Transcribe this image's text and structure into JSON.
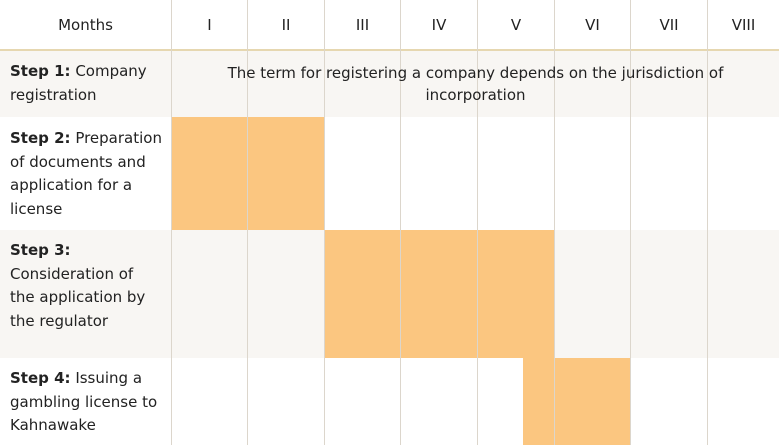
{
  "header": {
    "label": "Months",
    "months": [
      "I",
      "II",
      "III",
      "IV",
      "V",
      "VI",
      "VII",
      "VIII"
    ]
  },
  "steps": [
    {
      "title": "Step 1:",
      "text": " Company registration"
    },
    {
      "title": "Step 2:",
      "text": " Preparation of documents and application for a license"
    },
    {
      "title": "Step 3:",
      "text": " Consideration of the application by the regulator"
    },
    {
      "title": "Step 4:",
      "text": " Issuing a gambling license to Kahnawake"
    }
  ],
  "step1_note": "The term for registering a company depends on the jurisdiction of incorporation",
  "colors": {
    "bar": "#fbc680",
    "header_line": "#e6d7b0",
    "row_alt": "#f8f6f3"
  },
  "timeline": [
    {
      "step": 2,
      "start_month": 1,
      "end_month": 2
    },
    {
      "step": 3,
      "start_month": 3,
      "end_month": 5
    },
    {
      "step": 4,
      "start_month": 5.4,
      "end_month": 6
    }
  ]
}
